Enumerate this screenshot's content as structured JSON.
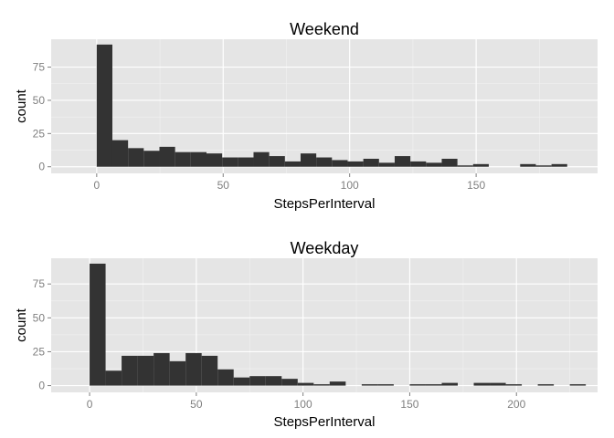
{
  "chart_data": [
    {
      "type": "bar",
      "title": "Weekend",
      "xlabel": "StepsPerInterval",
      "ylabel": "count",
      "xlim": [
        -18,
        198
      ],
      "ylim": [
        -5,
        96
      ],
      "xticks": [
        0,
        50,
        100,
        150
      ],
      "yticks": [
        0,
        25,
        50,
        75
      ],
      "bin_width": 6.2,
      "bins": [
        {
          "x0": 0.0,
          "count": 92
        },
        {
          "x0": 6.2,
          "count": 20
        },
        {
          "x0": 12.4,
          "count": 14
        },
        {
          "x0": 18.6,
          "count": 12
        },
        {
          "x0": 24.8,
          "count": 15
        },
        {
          "x0": 31.0,
          "count": 11
        },
        {
          "x0": 37.2,
          "count": 11
        },
        {
          "x0": 43.4,
          "count": 10
        },
        {
          "x0": 49.6,
          "count": 7
        },
        {
          "x0": 55.8,
          "count": 7
        },
        {
          "x0": 62.0,
          "count": 11
        },
        {
          "x0": 68.2,
          "count": 8
        },
        {
          "x0": 74.4,
          "count": 4
        },
        {
          "x0": 80.6,
          "count": 10
        },
        {
          "x0": 86.8,
          "count": 7
        },
        {
          "x0": 93.0,
          "count": 5
        },
        {
          "x0": 99.2,
          "count": 4
        },
        {
          "x0": 105.4,
          "count": 6
        },
        {
          "x0": 111.6,
          "count": 3
        },
        {
          "x0": 117.8,
          "count": 8
        },
        {
          "x0": 124.0,
          "count": 4
        },
        {
          "x0": 130.2,
          "count": 3
        },
        {
          "x0": 136.4,
          "count": 6
        },
        {
          "x0": 142.6,
          "count": 1
        },
        {
          "x0": 148.8,
          "count": 2
        },
        {
          "x0": 155.0,
          "count": 0
        },
        {
          "x0": 161.2,
          "count": 0
        },
        {
          "x0": 167.4,
          "count": 2
        },
        {
          "x0": 173.6,
          "count": 1
        },
        {
          "x0": 179.8,
          "count": 2
        }
      ],
      "grid": true,
      "colors": {
        "bar": "#333333",
        "panel": "#e5e5e5",
        "grid_major": "#ffffff",
        "grid_minor": "#f2f2f2"
      }
    },
    {
      "type": "bar",
      "title": "Weekday",
      "xlabel": "StepsPerInterval",
      "ylabel": "count",
      "xlim": [
        -18,
        238
      ],
      "ylim": [
        -5,
        94
      ],
      "xticks": [
        0,
        50,
        100,
        150,
        200
      ],
      "yticks": [
        0,
        25,
        50,
        75
      ],
      "bin_width": 7.5,
      "bins": [
        {
          "x0": 0.0,
          "count": 90
        },
        {
          "x0": 7.5,
          "count": 11
        },
        {
          "x0": 15.0,
          "count": 22
        },
        {
          "x0": 22.5,
          "count": 22
        },
        {
          "x0": 30.0,
          "count": 24
        },
        {
          "x0": 37.5,
          "count": 18
        },
        {
          "x0": 45.0,
          "count": 24
        },
        {
          "x0": 52.5,
          "count": 22
        },
        {
          "x0": 60.0,
          "count": 12
        },
        {
          "x0": 67.5,
          "count": 6
        },
        {
          "x0": 75.0,
          "count": 7
        },
        {
          "x0": 82.5,
          "count": 7
        },
        {
          "x0": 90.0,
          "count": 5
        },
        {
          "x0": 97.5,
          "count": 2
        },
        {
          "x0": 105.0,
          "count": 1
        },
        {
          "x0": 112.5,
          "count": 3
        },
        {
          "x0": 120.0,
          "count": 0
        },
        {
          "x0": 127.5,
          "count": 1
        },
        {
          "x0": 135.0,
          "count": 1
        },
        {
          "x0": 142.5,
          "count": 0
        },
        {
          "x0": 150.0,
          "count": 1
        },
        {
          "x0": 157.5,
          "count": 1
        },
        {
          "x0": 165.0,
          "count": 2
        },
        {
          "x0": 172.5,
          "count": 0
        },
        {
          "x0": 180.0,
          "count": 2
        },
        {
          "x0": 187.5,
          "count": 2
        },
        {
          "x0": 195.0,
          "count": 1
        },
        {
          "x0": 202.5,
          "count": 0
        },
        {
          "x0": 210.0,
          "count": 1
        },
        {
          "x0": 217.5,
          "count": 0
        },
        {
          "x0": 225.0,
          "count": 1
        }
      ],
      "grid": true,
      "colors": {
        "bar": "#333333",
        "panel": "#e5e5e5",
        "grid_major": "#ffffff",
        "grid_minor": "#f2f2f2"
      }
    }
  ]
}
